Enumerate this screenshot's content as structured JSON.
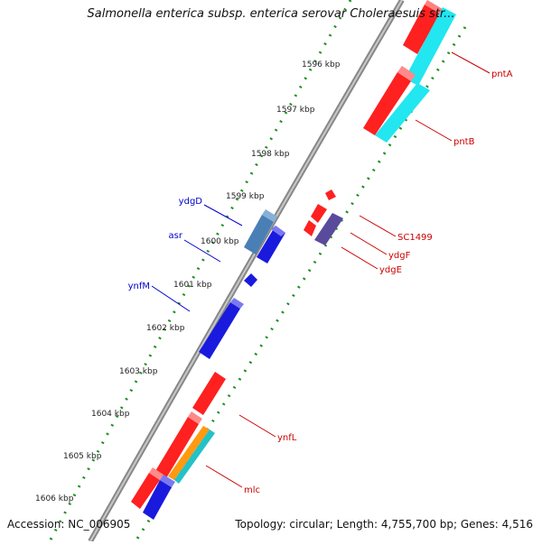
{
  "title": "Salmonella enterica subsp. enterica serovar Choleraesuis str...",
  "accession_text": "Accession: NC_006905",
  "summary_text": "Topology: circular; Length: 4,755,700 bp; Genes: 4,516",
  "kbp_ticks": [
    "1596 kbp",
    "1597 kbp",
    "1598 kbp",
    "1599 kbp",
    "1600 kbp",
    "1601 kbp",
    "1602 kbp",
    "1603 kbp",
    "1604 kbp",
    "1605 kbp",
    "1606 kbp"
  ],
  "genes_outer": [
    {
      "label": "ydgD",
      "color": "#4a7fb5"
    },
    {
      "label": "asr",
      "color": "#1a1adf"
    },
    {
      "label": "ynfM",
      "color": "#1a1adf"
    }
  ],
  "genes_inner": [
    {
      "label": "pntA",
      "color": "#ff2020"
    },
    {
      "label": "pntB",
      "color": "#22e6f0"
    },
    {
      "label": "SC1499",
      "color": "#ff2020"
    },
    {
      "label": "ydgF",
      "color": "#5a4a9c"
    },
    {
      "label": "ydgE",
      "color": "#5a4a9c"
    },
    {
      "label": "ynfL",
      "color": "#ff2020"
    },
    {
      "label": "mlc",
      "color": "#ff9a10"
    }
  ],
  "colors": {
    "forward_label": "#0000cc",
    "reverse_label": "#cc0000",
    "tick_green": "#1f8f1f",
    "backbone": "#8a8a8a"
  }
}
